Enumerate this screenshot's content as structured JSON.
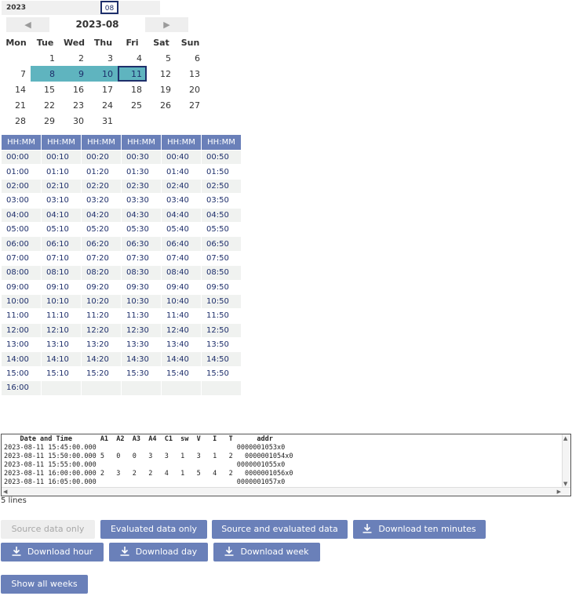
{
  "picker": {
    "year": "2023",
    "month": "08"
  },
  "calendar": {
    "title": "2023-08",
    "prev_label": "◀",
    "next_label": "▶",
    "weekdays": [
      "Mon",
      "Tue",
      "Wed",
      "Thu",
      "Fri",
      "Sat",
      "Sun"
    ],
    "weeks": [
      [
        "",
        "1",
        "2",
        "3",
        "4",
        "5",
        "6"
      ],
      [
        "7",
        "8",
        "9",
        "10",
        "11",
        "12",
        "13"
      ],
      [
        "14",
        "15",
        "16",
        "17",
        "18",
        "19",
        "20"
      ],
      [
        "21",
        "22",
        "23",
        "24",
        "25",
        "26",
        "27"
      ],
      [
        "28",
        "29",
        "30",
        "31",
        "",
        "",
        ""
      ]
    ],
    "selected_days": [
      "8",
      "9",
      "10",
      "11"
    ],
    "current_day": "11"
  },
  "times": {
    "headers": [
      "HH:MM",
      "HH:MM",
      "HH:MM",
      "HH:MM",
      "HH:MM",
      "HH:MM"
    ],
    "rows": [
      [
        "00:00",
        "00:10",
        "00:20",
        "00:30",
        "00:40",
        "00:50"
      ],
      [
        "01:00",
        "01:10",
        "01:20",
        "01:30",
        "01:40",
        "01:50"
      ],
      [
        "02:00",
        "02:10",
        "02:20",
        "02:30",
        "02:40",
        "02:50"
      ],
      [
        "03:00",
        "03:10",
        "03:20",
        "03:30",
        "03:40",
        "03:50"
      ],
      [
        "04:00",
        "04:10",
        "04:20",
        "04:30",
        "04:40",
        "04:50"
      ],
      [
        "05:00",
        "05:10",
        "05:20",
        "05:30",
        "05:40",
        "05:50"
      ],
      [
        "06:00",
        "06:10",
        "06:20",
        "06:30",
        "06:40",
        "06:50"
      ],
      [
        "07:00",
        "07:10",
        "07:20",
        "07:30",
        "07:40",
        "07:50"
      ],
      [
        "08:00",
        "08:10",
        "08:20",
        "08:30",
        "08:40",
        "08:50"
      ],
      [
        "09:00",
        "09:10",
        "09:20",
        "09:30",
        "09:40",
        "09:50"
      ],
      [
        "10:00",
        "10:10",
        "10:20",
        "10:30",
        "10:40",
        "10:50"
      ],
      [
        "11:00",
        "11:10",
        "11:20",
        "11:30",
        "11:40",
        "11:50"
      ],
      [
        "12:00",
        "12:10",
        "12:20",
        "12:30",
        "12:40",
        "12:50"
      ],
      [
        "13:00",
        "13:10",
        "13:20",
        "13:30",
        "13:40",
        "13:50"
      ],
      [
        "14:00",
        "14:10",
        "14:20",
        "14:30",
        "14:40",
        "14:50"
      ],
      [
        "15:00",
        "15:10",
        "15:20",
        "15:30",
        "15:40",
        "15:50"
      ],
      [
        "16:00",
        "",
        "",
        "",
        "",
        ""
      ]
    ]
  },
  "data_view": {
    "header": "    Date and Time       A1  A2  A3  A4  C1  sw  V   I   T      addr",
    "rows": [
      "2023-08-11 15:45:00.000                                   0000001053x0",
      "2023-08-11 15:50:00.000 5   0   0   3   3   1   3   1   2   0000001054x0",
      "2023-08-11 15:55:00.000                                   0000001055x0",
      "2023-08-11 16:00:00.000 2   3   2   2   4   1   5   4   2   0000001056x0",
      "2023-08-11 16:05:00.000                                   0000001057x0"
    ],
    "line_count": "5 lines",
    "scroll_up": "▲",
    "scroll_down": "▼",
    "scroll_left": "◀",
    "scroll_right": "▶"
  },
  "buttons": {
    "source_only": "Source data only",
    "evaluated_only": "Evaluated data only",
    "source_and_evaluated": "Source and evaluated data",
    "download_ten_minutes": "Download ten minutes",
    "download_hour": "Download hour",
    "download_day": "Download day",
    "download_week": "Download week",
    "show_all_weeks": "Show all weeks"
  },
  "colors": {
    "accent": "#6a80b9",
    "selection": "#5fb4bf",
    "highlight_border": "#1e2f6b"
  },
  "icons": {
    "download": "download-icon"
  }
}
